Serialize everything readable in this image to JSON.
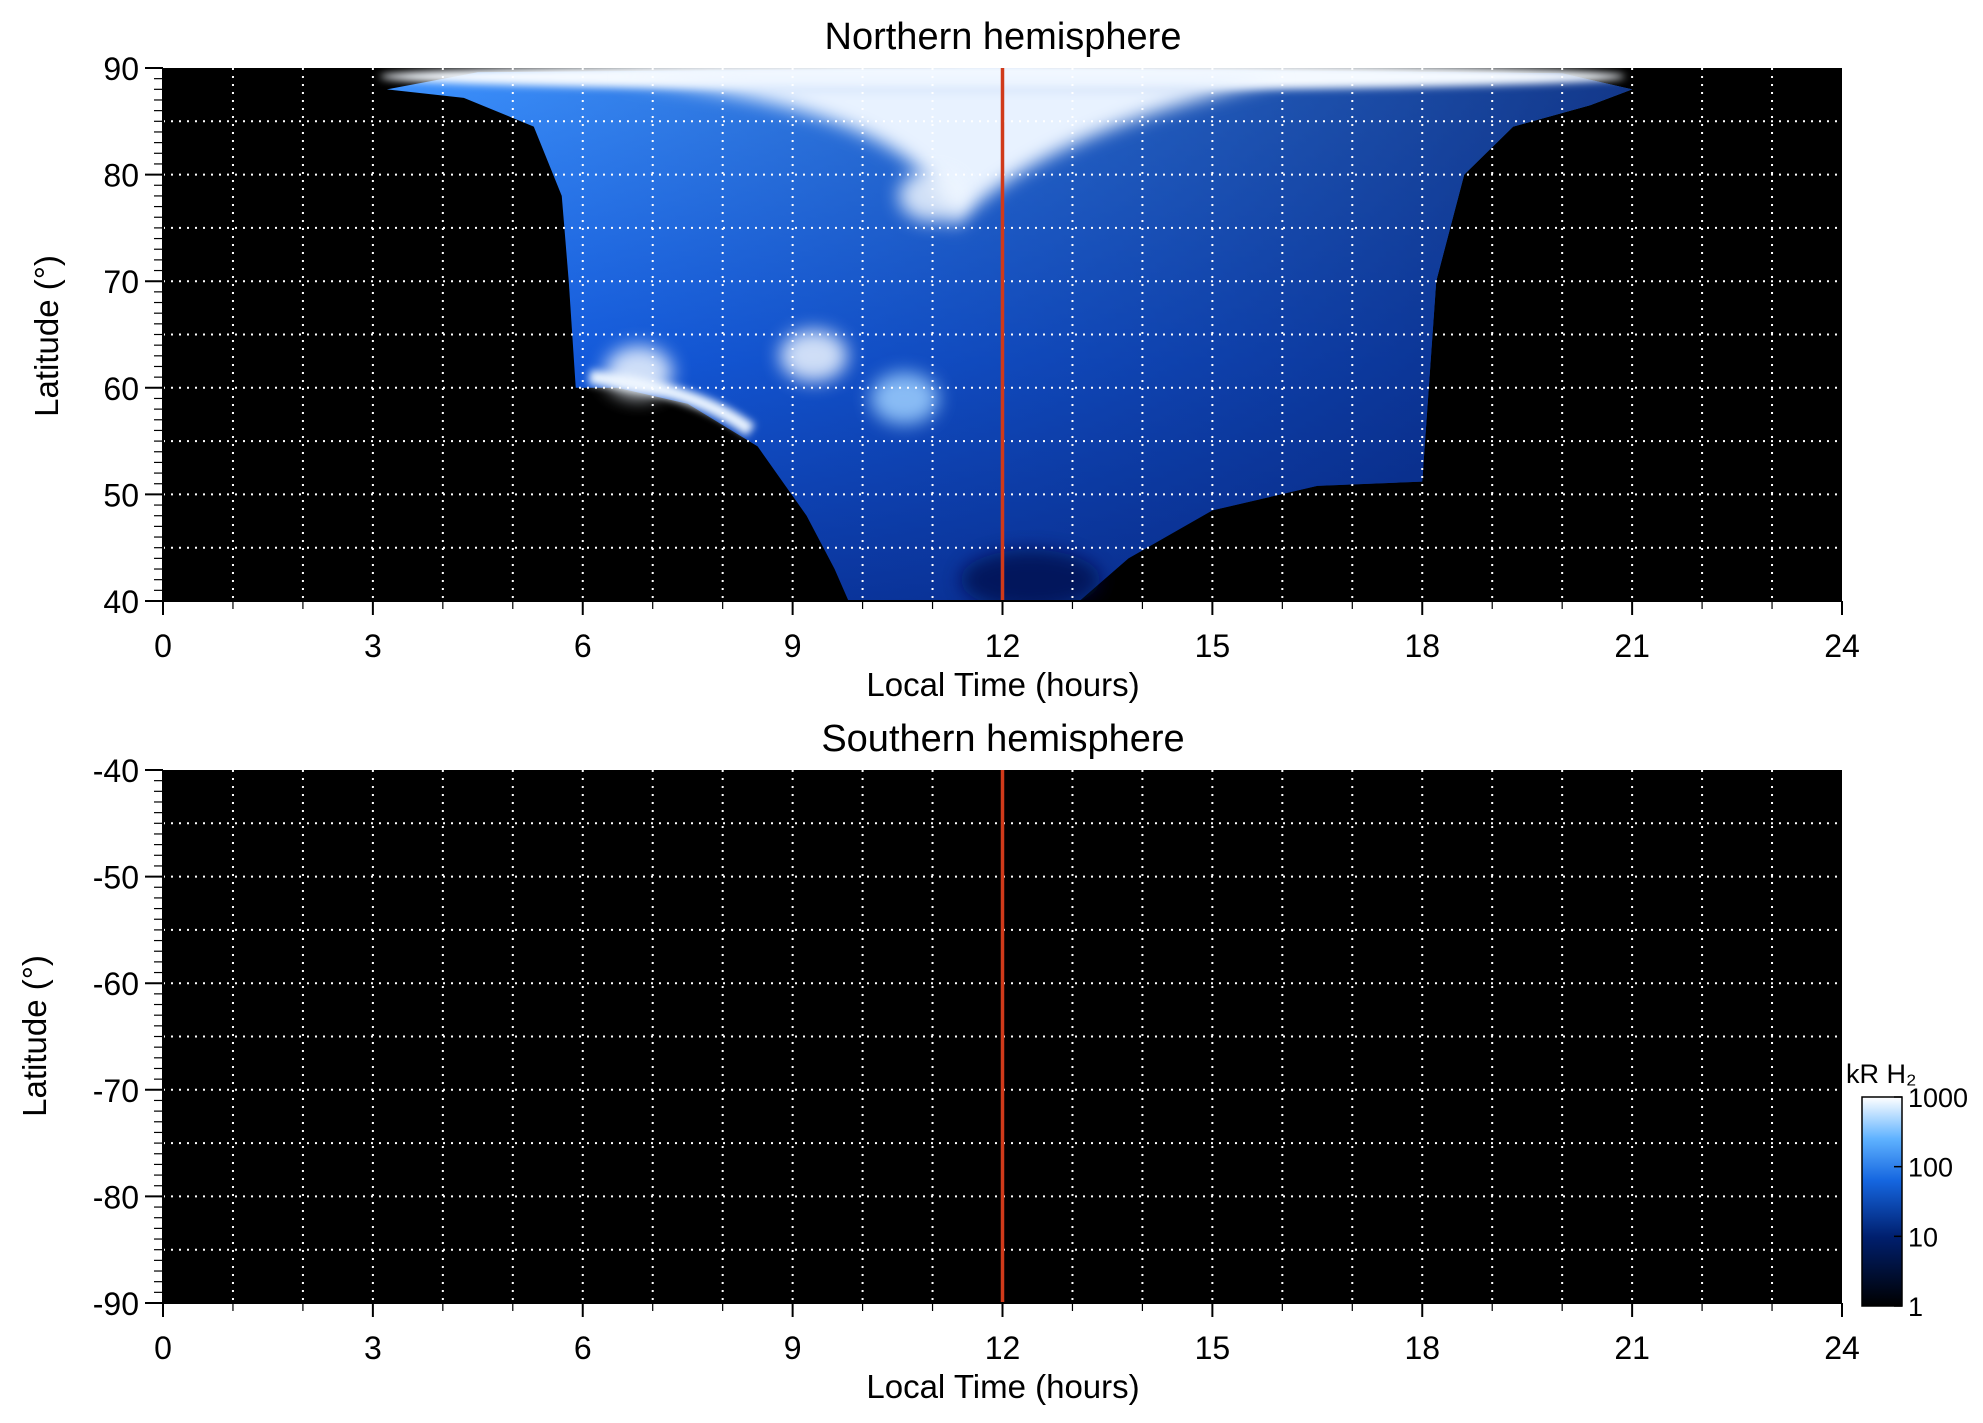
{
  "chart_data": [
    {
      "type": "heatmap",
      "title": "Northern hemisphere",
      "xlabel": "Local Time (hours)",
      "ylabel": "Latitude (°)",
      "xlim": [
        0,
        24
      ],
      "ylim": [
        40,
        90
      ],
      "x_ticks": [
        "0",
        "3",
        "6",
        "9",
        "12",
        "15",
        "18",
        "21",
        "24"
      ],
      "x_tick_values": [
        0,
        3,
        6,
        9,
        12,
        15,
        18,
        21,
        24
      ],
      "y_ticks": [
        "40",
        "50",
        "60",
        "70",
        "80",
        "90"
      ],
      "y_tick_values": [
        40,
        50,
        60,
        70,
        80,
        90
      ],
      "grid": true,
      "reference_line": {
        "x": 12,
        "color": "#d03a1a"
      },
      "background_color": "#000000",
      "emission_region": {
        "local_time_extent": [
          3.2,
          21.0
        ],
        "latitude_extent": [
          40,
          90
        ],
        "equatorward_edge": [
          {
            "x": 5.9,
            "y": 60
          },
          {
            "x": 6.5,
            "y": 60
          },
          {
            "x": 7.5,
            "y": 58.5
          },
          {
            "x": 8.5,
            "y": 54.5
          },
          {
            "x": 9.2,
            "y": 48
          },
          {
            "x": 9.6,
            "y": 43
          },
          {
            "x": 9.8,
            "y": 40
          },
          {
            "x": 13.1,
            "y": 40
          },
          {
            "x": 13.8,
            "y": 44
          },
          {
            "x": 15,
            "y": 48.5
          },
          {
            "x": 16.5,
            "y": 50.8
          },
          {
            "x": 18,
            "y": 51.2
          }
        ],
        "poleward_bright_band": {
          "latitude_range": [
            87.5,
            90
          ],
          "local_time_range": [
            3.2,
            21.0
          ]
        },
        "bright_features": [
          {
            "x": 11.0,
            "y": 78,
            "intensity_kR": 1000
          },
          {
            "x": 9.3,
            "y": 63,
            "intensity_kR": 900
          },
          {
            "x": 6.8,
            "y": 61.5,
            "intensity_kR": 900
          },
          {
            "x": 10.6,
            "y": 59,
            "intensity_kR": 500
          }
        ]
      }
    },
    {
      "type": "heatmap",
      "title": "Southern hemisphere",
      "xlabel": "Local Time (hours)",
      "ylabel": "Latitude (°)",
      "xlim": [
        0,
        24
      ],
      "ylim": [
        -90,
        -40
      ],
      "x_ticks": [
        "0",
        "3",
        "6",
        "9",
        "12",
        "15",
        "18",
        "21",
        "24"
      ],
      "x_tick_values": [
        0,
        3,
        6,
        9,
        12,
        15,
        18,
        21,
        24
      ],
      "y_ticks": [
        "-40",
        "-50",
        "-60",
        "-70",
        "-80",
        "-90"
      ],
      "y_tick_values": [
        -40,
        -50,
        -60,
        -70,
        -80,
        -90
      ],
      "grid": true,
      "reference_line": {
        "x": 12,
        "color": "#d03a1a"
      },
      "background_color": "#000000"
    }
  ],
  "colorbar": {
    "label": "kR H₂",
    "scale": "log",
    "range": [
      1,
      1000
    ],
    "ticks": [
      "1000",
      "100",
      "10",
      "1"
    ],
    "tick_values": [
      1000,
      100,
      10,
      1
    ],
    "colors": [
      "#000000",
      "#001f6e",
      "#1566e0",
      "#5fb2ff",
      "#ffffff"
    ],
    "placement": "bottom-right"
  },
  "colors": {
    "reference_line": "#d03a1a",
    "grid": "#ffffff",
    "plot_background": "#000000"
  }
}
